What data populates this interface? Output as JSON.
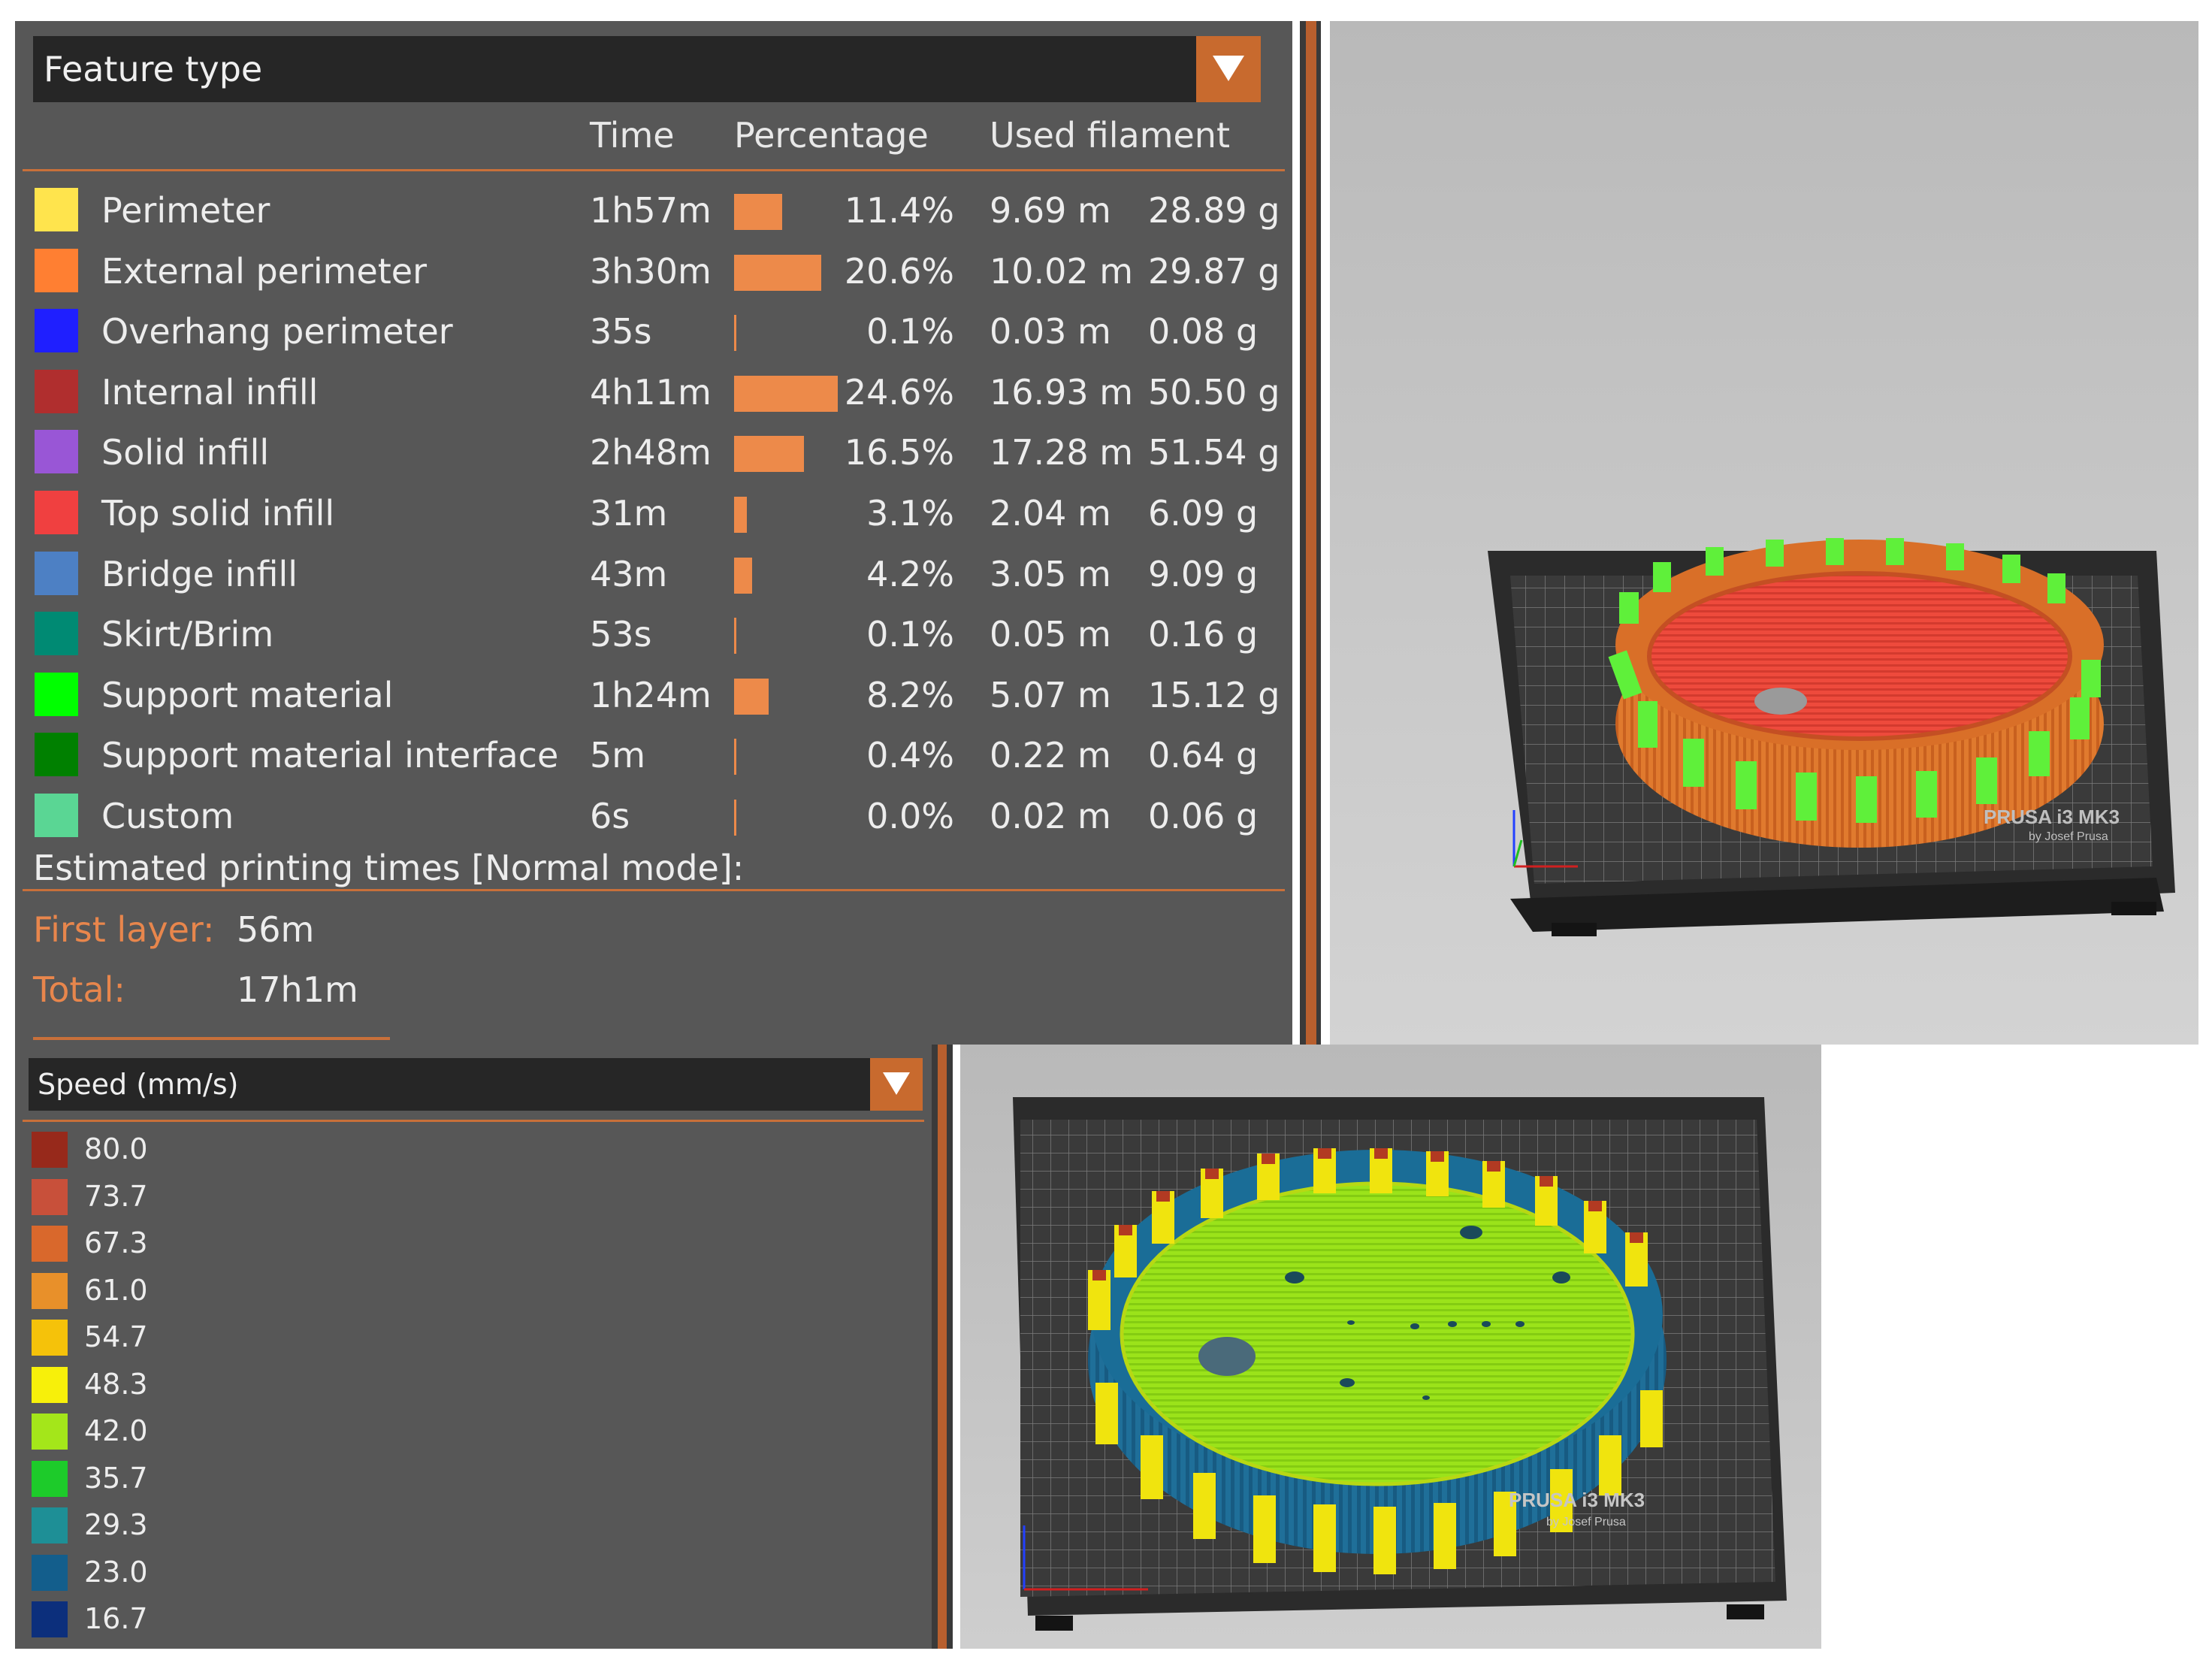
{
  "panel_top": {
    "selector": {
      "label": "Feature type"
    },
    "headers": {
      "time": "Time",
      "percentage": "Percentage",
      "used_filament": "Used filament"
    },
    "rows": [
      {
        "name": "Perimeter",
        "color": "#ffe44d",
        "time": "1h57m",
        "percent": "11.4%",
        "pct_value": 11.4,
        "length": "9.69 m",
        "weight": "28.89 g"
      },
      {
        "name": "External perimeter",
        "color": "#ff7f32",
        "time": "3h30m",
        "percent": "20.6%",
        "pct_value": 20.6,
        "length": "10.02 m",
        "weight": "29.87 g"
      },
      {
        "name": "Overhang perimeter",
        "color": "#1f1fff",
        "time": "35s",
        "percent": "0.1%",
        "pct_value": 0.1,
        "length": "0.03 m",
        "weight": "0.08 g"
      },
      {
        "name": "Internal infill",
        "color": "#b02e2e",
        "time": "4h11m",
        "percent": "24.6%",
        "pct_value": 24.6,
        "length": "16.93 m",
        "weight": "50.50 g"
      },
      {
        "name": "Solid infill",
        "color": "#9956d6",
        "time": "2h48m",
        "percent": "16.5%",
        "pct_value": 16.5,
        "length": "17.28 m",
        "weight": "51.54 g"
      },
      {
        "name": "Top solid infill",
        "color": "#f04040",
        "time": "31m",
        "percent": "3.1%",
        "pct_value": 3.1,
        "length": "2.04 m",
        "weight": "6.09 g"
      },
      {
        "name": "Bridge infill",
        "color": "#4d80c4",
        "time": "43m",
        "percent": "4.2%",
        "pct_value": 4.2,
        "length": "3.05 m",
        "weight": "9.09 g"
      },
      {
        "name": "Skirt/Brim",
        "color": "#008a73",
        "time": "53s",
        "percent": "0.1%",
        "pct_value": 0.1,
        "length": "0.05 m",
        "weight": "0.16 g"
      },
      {
        "name": "Support material",
        "color": "#00ff00",
        "time": "1h24m",
        "percent": "8.2%",
        "pct_value": 8.2,
        "length": "5.07 m",
        "weight": "15.12 g"
      },
      {
        "name": "Support material interface",
        "color": "#008000",
        "time": "5m",
        "percent": "0.4%",
        "pct_value": 0.4,
        "length": "0.22 m",
        "weight": "0.64 g"
      },
      {
        "name": "Custom",
        "color": "#5ad694",
        "time": "6s",
        "percent": "0.0%",
        "pct_value": 0.0,
        "length": "0.02 m",
        "weight": "0.06 g"
      }
    ],
    "estimated": {
      "heading": "Estimated printing times [Normal mode]:",
      "first_layer_label": "First layer:",
      "first_layer_value": "56m",
      "total_label": "Total:",
      "total_value": "17h1m"
    }
  },
  "panel_bottom": {
    "selector": {
      "label": "Speed (mm/s)"
    },
    "legend": [
      {
        "value": "80.0",
        "color": "#97291b"
      },
      {
        "value": "73.7",
        "color": "#c8503a"
      },
      {
        "value": "67.3",
        "color": "#d9682c"
      },
      {
        "value": "61.0",
        "color": "#e8902a"
      },
      {
        "value": "54.7",
        "color": "#f5c20a"
      },
      {
        "value": "48.3",
        "color": "#f7f00a"
      },
      {
        "value": "42.0",
        "color": "#a4e61a"
      },
      {
        "value": "35.7",
        "color": "#1dcb2a"
      },
      {
        "value": "29.3",
        "color": "#1e8f96"
      },
      {
        "value": "23.0",
        "color": "#135e8c"
      },
      {
        "value": "16.7",
        "color": "#0c2f7c"
      }
    ]
  },
  "viewport_top": {
    "bed_text": "PRUSA i3 MK3",
    "bed_subtext": "by Josef Prusa"
  },
  "viewport_bottom": {
    "bed_text": "PRUSA i3 MK3",
    "bed_subtext": "by Josef Prusa"
  }
}
